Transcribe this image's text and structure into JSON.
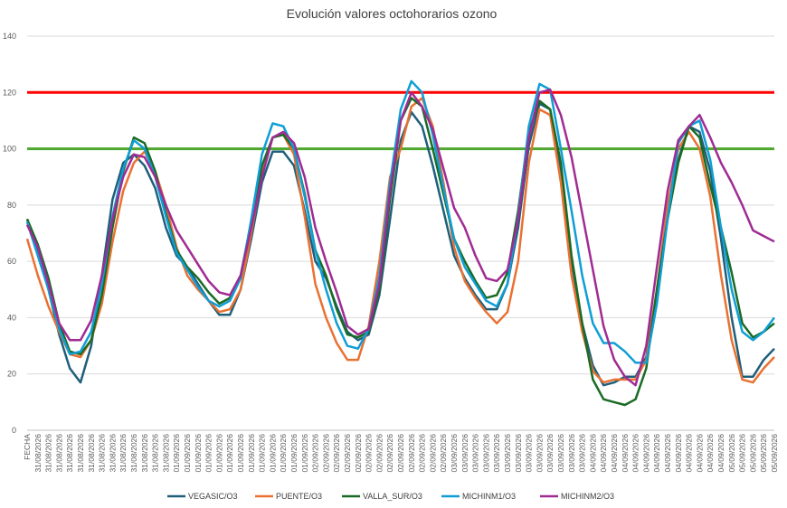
{
  "chart_data": {
    "type": "line",
    "title": "Evolución valores octohorarios ozono",
    "categories": [
      "FECHA",
      "31/08/2026",
      "31/08/2026",
      "31/08/2026",
      "31/08/2026",
      "31/08/2026",
      "31/08/2026",
      "31/08/2026",
      "31/08/2026",
      "31/08/2026",
      "31/08/2026",
      "31/08/2026",
      "31/08/2026",
      "31/08/2026",
      "01/09/2026",
      "01/09/2026",
      "01/09/2026",
      "01/09/2026",
      "01/09/2026",
      "01/09/2026",
      "01/09/2026",
      "01/09/2026",
      "01/09/2026",
      "01/09/2026",
      "01/09/2026",
      "01/09/2026",
      "01/09/2026",
      "02/09/2026",
      "02/09/2026",
      "02/09/2026",
      "02/09/2026",
      "02/09/2026",
      "02/09/2026",
      "02/09/2026",
      "02/09/2026",
      "02/09/2026",
      "02/09/2026",
      "02/09/2026",
      "02/09/2026",
      "02/09/2026",
      "03/09/2026",
      "03/09/2026",
      "03/09/2026",
      "03/09/2026",
      "03/09/2026",
      "03/09/2026",
      "03/09/2026",
      "03/09/2026",
      "03/09/2026",
      "03/09/2026",
      "03/09/2026",
      "03/09/2026",
      "03/09/2026",
      "04/09/2026",
      "04/09/2026",
      "04/09/2026",
      "04/09/2026",
      "04/09/2026",
      "04/09/2026",
      "04/09/2026",
      "04/09/2026",
      "04/09/2026",
      "04/09/2026",
      "04/09/2026",
      "04/09/2026",
      "04/09/2026",
      "05/09/2026",
      "05/09/2026",
      "05/09/2026",
      "05/09/2026",
      "05/09/2026"
    ],
    "series": [
      {
        "name": "VEGASIC/O3",
        "color": "#1f5f7a",
        "values": [
          75,
          64,
          50,
          34,
          22,
          17,
          30,
          55,
          82,
          95,
          98,
          94,
          86,
          72,
          62,
          58,
          52,
          46,
          41,
          41,
          50,
          68,
          88,
          99,
          99,
          94,
          78,
          60,
          54,
          44,
          35,
          32,
          34,
          48,
          75,
          103,
          113,
          108,
          94,
          78,
          62,
          54,
          48,
          43,
          43,
          52,
          72,
          101,
          116,
          114,
          92,
          60,
          38,
          23,
          16,
          17,
          19,
          19,
          26,
          50,
          75,
          96,
          108,
          106,
          92,
          68,
          40,
          19,
          19,
          25,
          29
        ]
      },
      {
        "name": "PUENTE/O3",
        "color": "#e97132",
        "values": [
          68,
          55,
          44,
          35,
          27,
          26,
          32,
          45,
          67,
          85,
          95,
          99,
          92,
          80,
          65,
          55,
          50,
          46,
          42,
          43,
          50,
          70,
          92,
          104,
          105,
          98,
          76,
          52,
          40,
          31,
          25,
          25,
          37,
          60,
          90,
          100,
          115,
          118,
          108,
          88,
          65,
          53,
          47,
          42,
          38,
          42,
          60,
          95,
          114,
          112,
          88,
          55,
          35,
          21,
          17,
          18,
          18,
          18,
          25,
          50,
          80,
          100,
          106,
          100,
          83,
          55,
          32,
          18,
          17,
          22,
          26
        ]
      },
      {
        "name": "VALLA_SUR/O3",
        "color": "#196b24",
        "values": [
          75,
          66,
          54,
          38,
          28,
          27,
          32,
          48,
          72,
          92,
          104,
          102,
          92,
          77,
          64,
          58,
          54,
          49,
          45,
          47,
          55,
          74,
          94,
          104,
          105,
          100,
          84,
          64,
          55,
          43,
          34,
          33,
          35,
          50,
          82,
          110,
          118,
          115,
          100,
          84,
          68,
          60,
          53,
          47,
          48,
          56,
          78,
          106,
          117,
          114,
          95,
          62,
          38,
          18,
          11,
          10,
          9,
          11,
          22,
          50,
          75,
          95,
          108,
          104,
          87,
          72,
          56,
          38,
          33,
          35,
          38
        ]
      },
      {
        "name": "MICHINM1/O3",
        "color": "#0f9ed5",
        "values": [
          74,
          62,
          50,
          36,
          27,
          28,
          35,
          52,
          76,
          93,
          103,
          100,
          90,
          76,
          63,
          57,
          51,
          46,
          44,
          46,
          54,
          75,
          98,
          109,
          108,
          100,
          83,
          64,
          50,
          38,
          30,
          29,
          36,
          55,
          88,
          114,
          124,
          120,
          105,
          86,
          68,
          58,
          52,
          46,
          44,
          52,
          76,
          108,
          123,
          121,
          100,
          78,
          55,
          38,
          31,
          31,
          28,
          24,
          24,
          45,
          75,
          102,
          108,
          110,
          96,
          72,
          50,
          35,
          32,
          35,
          40
        ]
      },
      {
        "name": "MICHINM2/O3",
        "color": "#a02b93",
        "values": [
          73,
          65,
          52,
          38,
          32,
          32,
          39,
          55,
          75,
          90,
          98,
          97,
          90,
          80,
          71,
          65,
          59,
          53,
          49,
          48,
          55,
          72,
          90,
          104,
          106,
          102,
          90,
          72,
          60,
          49,
          37,
          34,
          36,
          52,
          85,
          110,
          120,
          115,
          107,
          93,
          79,
          72,
          62,
          54,
          53,
          57,
          75,
          104,
          120,
          121,
          112,
          97,
          77,
          57,
          37,
          25,
          19,
          16,
          30,
          58,
          85,
          103,
          108,
          112,
          104,
          95,
          88,
          80,
          71,
          69,
          67
        ]
      }
    ],
    "reference_lines": [
      {
        "value": 120,
        "color": "#ff0000"
      },
      {
        "value": 100,
        "color": "#4ea72e"
      }
    ],
    "ylim": [
      0,
      140
    ],
    "yticks": [
      0,
      20,
      40,
      60,
      80,
      100,
      120,
      140
    ],
    "grid": true,
    "legend": "bottom"
  }
}
